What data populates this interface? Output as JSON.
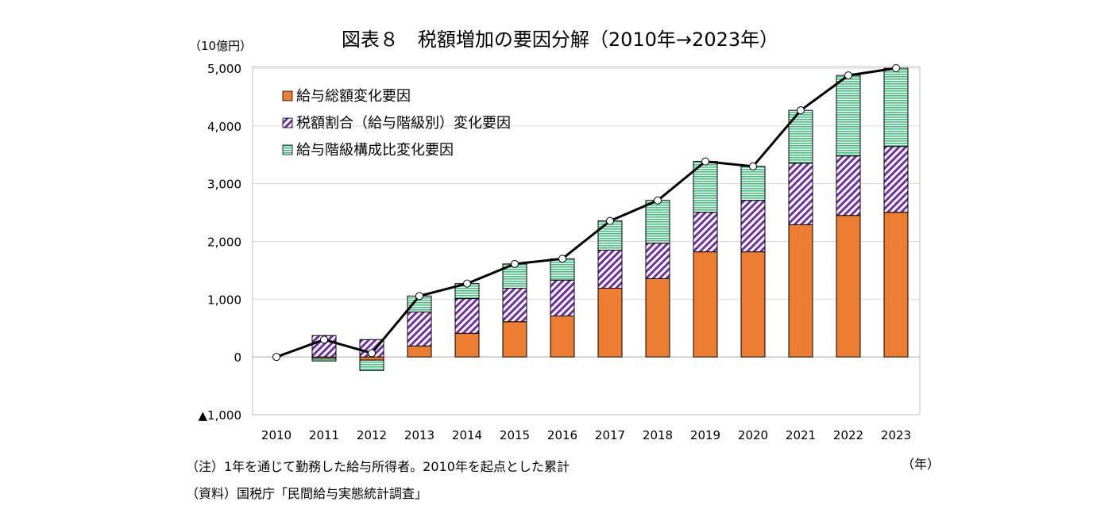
{
  "chart_data": {
    "type": "bar",
    "title": "図表８　税額増加の要因分解（2010年→2023年）",
    "ylabel": "（10億円）",
    "xlabel": "（年）",
    "ylim": [
      -1000,
      5000
    ],
    "yticks": [
      5000,
      4000,
      3000,
      2000,
      1000,
      0,
      -1000
    ],
    "ytick_labels": [
      "5,000",
      "4,000",
      "3,000",
      "2,000",
      "1,000",
      "0",
      "▲1,000"
    ],
    "grid": true,
    "legend_position": "top-left",
    "categories": [
      "2010",
      "2011",
      "2012",
      "2013",
      "2014",
      "2015",
      "2016",
      "2017",
      "2018",
      "2019",
      "2020",
      "2021",
      "2022",
      "2023"
    ],
    "series": [
      {
        "name": "給与総額変化要因",
        "kind": "stacked-bar",
        "color": "#ED7D31",
        "values": [
          0,
          -25,
          -55,
          190,
          410,
          610,
          710,
          1190,
          1355,
          1820,
          1820,
          2290,
          2450,
          2505
        ]
      },
      {
        "name": "税額割合（給与階級別）変化要因",
        "kind": "stacked-bar",
        "color": "#7030A0",
        "pattern": "diagonal-hatch",
        "values": [
          0,
          370,
          300,
          590,
          600,
          580,
          620,
          660,
          615,
          685,
          890,
          1065,
          1030,
          1140
        ]
      },
      {
        "name": "給与階級構成比変化要因",
        "kind": "stacked-bar",
        "color": "#3CC47C",
        "pattern": "horizontal-lines",
        "values": [
          0,
          -45,
          -180,
          275,
          260,
          420,
          370,
          505,
          740,
          880,
          590,
          915,
          1395,
          1355
        ]
      },
      {
        "kind": "line",
        "color": "#000000",
        "values": [
          0,
          300,
          65,
          1055,
          1270,
          1610,
          1700,
          2355,
          2710,
          3385,
          3300,
          4270,
          4875,
          5000
        ]
      }
    ]
  },
  "notes": {
    "note": "（注）1年を通じて勤務した給与所得者。2010年を起点とした累計",
    "source": "（資料）国税庁「民間給与実態統計調査」"
  }
}
